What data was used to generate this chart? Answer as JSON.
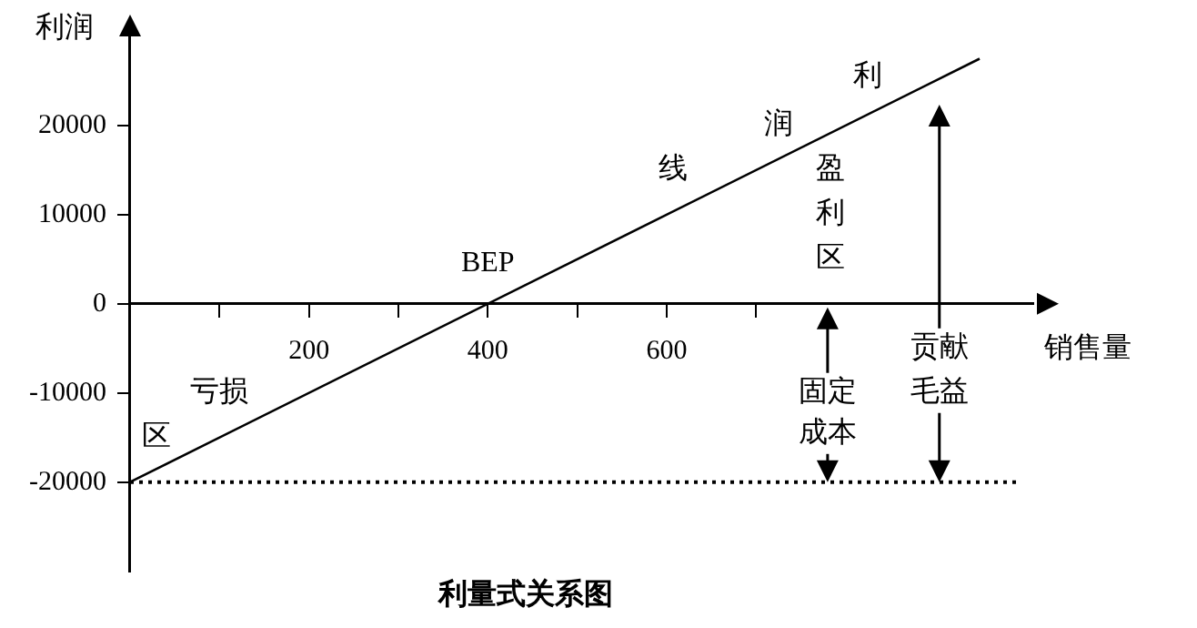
{
  "chart_data": {
    "type": "line",
    "title": "利量式关系图",
    "xlabel": "销售量",
    "ylabel": "利润",
    "x": [
      0,
      950
    ],
    "series": [
      {
        "color": "#000000",
        "values": [
          -20000,
          27500
        ]
      }
    ],
    "xlim": [
      0,
      1010
    ],
    "ylim": [
      -30000,
      30000
    ],
    "xticks": [
      {
        "value": 100,
        "label": null
      },
      200,
      {
        "value": 300,
        "label": null
      },
      400,
      {
        "value": 500,
        "label": null
      },
      600,
      {
        "value": 700,
        "label": null
      }
    ],
    "yticks": [
      -20000,
      -10000,
      0,
      10000,
      20000
    ],
    "ref_lines": [
      {
        "axis": "y",
        "value": -20000,
        "line_style": "dotted",
        "color": "#000000"
      }
    ],
    "annotations": [
      {
        "text": "BEP",
        "x": 400,
        "y": 4500
      },
      {
        "text": "亏损",
        "x": 100,
        "y": -10000
      },
      {
        "text": "区",
        "x": 29,
        "y": -15000
      },
      {
        "text": "线",
        "x": 607,
        "y": 15000
      },
      {
        "text": "润",
        "x": 725,
        "y": 20000
      },
      {
        "text": "利",
        "x": 825,
        "y": 25400
      },
      {
        "text": "盈",
        "x": 783,
        "y": 15000
      },
      {
        "text": "利",
        "x": 783,
        "y": 10000
      },
      {
        "text": "区",
        "x": 783,
        "y": 5000
      },
      {
        "text": "固定",
        "x": 780,
        "y": -10000
      },
      {
        "text": "成本",
        "x": 780,
        "y": -14600
      },
      {
        "text": "贡献",
        "x": 905,
        "y": -5000
      },
      {
        "text": "毛益",
        "x": 905,
        "y": -10000
      }
    ],
    "grid": false,
    "legend": false,
    "marker": "none",
    "line_style": "solid"
  }
}
